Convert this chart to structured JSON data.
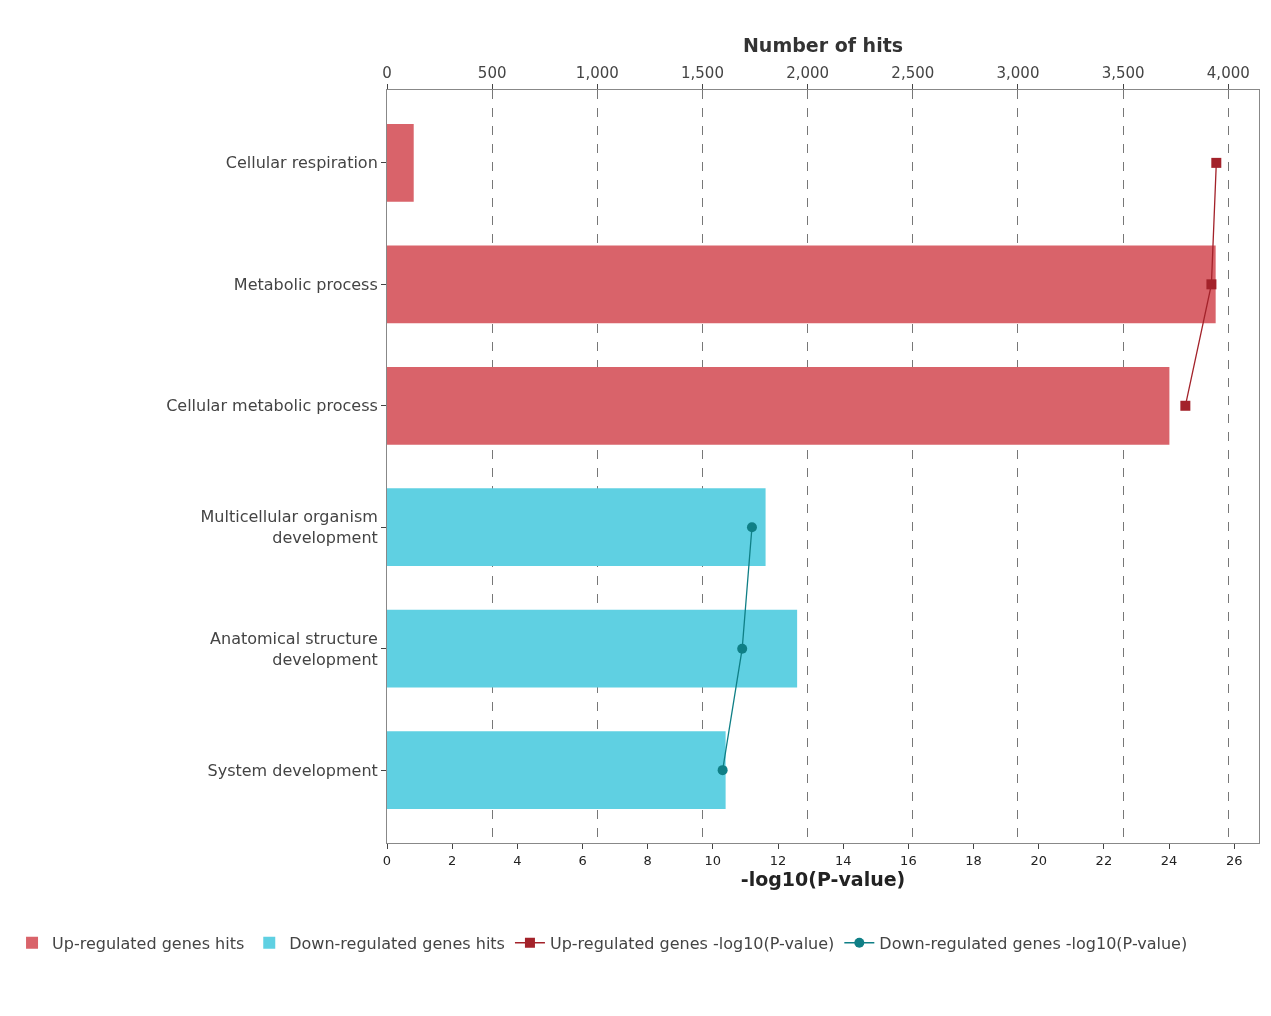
{
  "chart_data": {
    "type": "bar",
    "orientation": "horizontal",
    "xlabel": "-log10(P-value)",
    "x2label": "Number of hits",
    "categories": [
      "Cellular respiration",
      "Metabolic process",
      "Cellular metabolic process",
      "Multicellular organism\ndevelopment",
      "Anatomical structure\ndevelopment",
      "System development"
    ],
    "series": [
      {
        "name": "Up-regulated genes hits",
        "color": "#d9636a",
        "axis": "x2",
        "values": [
          127,
          3940,
          3720,
          null,
          null,
          null
        ]
      },
      {
        "name": "Down-regulated genes hits",
        "color": "#5fd0e2",
        "axis": "x2",
        "values": [
          null,
          null,
          null,
          1800,
          1950,
          1610
        ]
      },
      {
        "name": "Up-regulated genes -log10(P-value)",
        "type": "line",
        "marker": "square",
        "color": "#a3222a",
        "values": [
          25.45,
          25.3,
          24.5,
          null,
          null,
          null
        ]
      },
      {
        "name": "Down-regulated genes -log10(P-value)",
        "type": "line",
        "marker": "circle",
        "color": "#0f7f86",
        "values": [
          null,
          null,
          null,
          11.2,
          10.9,
          10.3
        ]
      }
    ],
    "xlim": [
      0,
      26.76
    ],
    "xticks": [
      0,
      2,
      4,
      6,
      8,
      10,
      12,
      14,
      16,
      18,
      20,
      22,
      24,
      26
    ],
    "x2lim": [
      0,
      4146
    ],
    "x2ticks": [
      {
        "value": 0,
        "label": "0"
      },
      {
        "value": 500,
        "label": "500"
      },
      {
        "value": 1000,
        "label": "1,000"
      },
      {
        "value": 1500,
        "label": "1,500"
      },
      {
        "value": 2000,
        "label": "2,000"
      },
      {
        "value": 2500,
        "label": "2,500"
      },
      {
        "value": 3000,
        "label": "3,000"
      },
      {
        "value": 3500,
        "label": "3,500"
      },
      {
        "value": 4000,
        "label": "4,000"
      }
    ],
    "grid": "x",
    "legend": "bottom"
  }
}
